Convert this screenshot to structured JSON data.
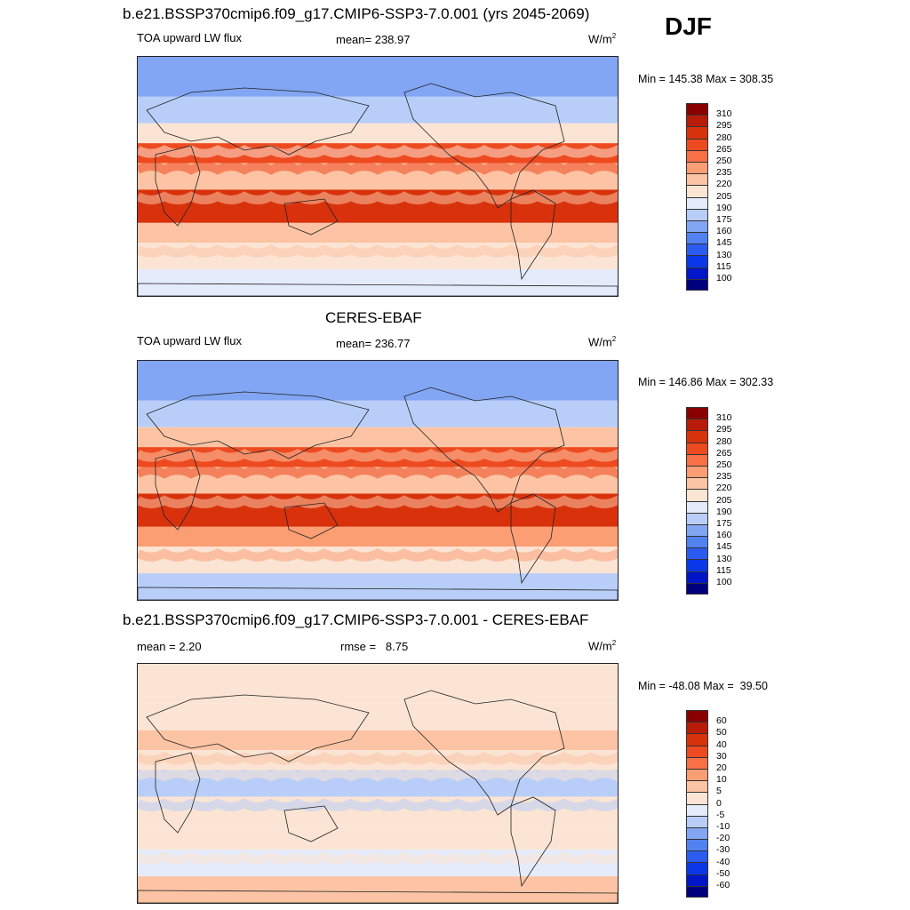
{
  "season": "DJF",
  "colors": {
    "flux": [
      "#00007f",
      "#0016c8",
      "#0a38e8",
      "#2a5cf0",
      "#5282f0",
      "#82a6f4",
      "#b8cef8",
      "#e4ecfb",
      "#fbe4d4",
      "#fcc4a4",
      "#fb9e74",
      "#f77046",
      "#ee4a20",
      "#d8320c",
      "#b81c08",
      "#8a0000"
    ],
    "diff": [
      "#00007f",
      "#0016c8",
      "#0a38e8",
      "#2a5cf0",
      "#5282f0",
      "#82a6f4",
      "#b8cef8",
      "#e4ecfb",
      "#fbe4d4",
      "#fcc4a4",
      "#fb9e74",
      "#f77046",
      "#ee4a20",
      "#d8320c",
      "#b81c08",
      "#8a0000"
    ]
  },
  "panels": [
    {
      "title": "b.e21.BSSP370cmip6.f09_g17.CMIP6-SSP3-7.0.001 (yrs 2045-2069)",
      "left_label": "TOA upward LW flux",
      "center_label": "mean= 238.97",
      "units": "W/m",
      "units_sup": "2",
      "minmax": "Min = 145.38 Max = 308.35",
      "levels": [
        "310",
        "295",
        "280",
        "265",
        "250",
        "235",
        "220",
        "205",
        "190",
        "175",
        "160",
        "145",
        "130",
        "115",
        "100"
      ]
    },
    {
      "title": "CERES-EBAF",
      "left_label": "TOA upward LW flux",
      "center_label": "mean= 236.77",
      "units": "W/m",
      "units_sup": "2",
      "minmax": "Min = 146.86 Max = 302.33",
      "levels": [
        "310",
        "295",
        "280",
        "265",
        "250",
        "235",
        "220",
        "205",
        "190",
        "175",
        "160",
        "145",
        "130",
        "115",
        "100"
      ]
    },
    {
      "title": "b.e21.BSSP370cmip6.f09_g17.CMIP6-SSP3-7.0.001 - CERES-EBAF",
      "left_label": "mean =   2.20",
      "center_label": "rmse =   8.75",
      "units": "W/m",
      "units_sup": "2",
      "minmax": "Min = -48.08 Max =  39.50",
      "levels": [
        "60",
        "50",
        "40",
        "30",
        "20",
        "10",
        "5",
        "0",
        "-5",
        "-10",
        "-20",
        "-30",
        "-40",
        "-50",
        "-60"
      ]
    }
  ],
  "chart_data": [
    {
      "type": "heatmap",
      "title": "b.e21.BSSP370cmip6.f09_g17.CMIP6-SSP3-7.0.001 (yrs 2045-2069)",
      "variable": "TOA upward LW flux",
      "units": "W/m2",
      "mean": 238.97,
      "min": 145.38,
      "max": 308.35,
      "contour_levels": [
        100,
        115,
        130,
        145,
        160,
        175,
        190,
        205,
        220,
        235,
        250,
        265,
        280,
        295,
        310
      ],
      "zonal_bands": [
        {
          "lat_range": [
            60,
            90
          ],
          "level_index": 5
        },
        {
          "lat_range": [
            40,
            60
          ],
          "level_index": 6
        },
        {
          "lat_range": [
            25,
            40
          ],
          "level_index": 8
        },
        {
          "lat_range": [
            10,
            25
          ],
          "level_index": 12
        },
        {
          "lat_range": [
            -10,
            10
          ],
          "level_index": 9
        },
        {
          "lat_range": [
            -35,
            -10
          ],
          "level_index": 13
        },
        {
          "lat_range": [
            -50,
            -35
          ],
          "level_index": 9
        },
        {
          "lat_range": [
            -70,
            -50
          ],
          "level_index": 8
        },
        {
          "lat_range": [
            -90,
            -70
          ],
          "level_index": 7
        }
      ]
    },
    {
      "type": "heatmap",
      "title": "CERES-EBAF",
      "variable": "TOA upward LW flux",
      "units": "W/m2",
      "mean": 236.77,
      "min": 146.86,
      "max": 302.33,
      "contour_levels": [
        100,
        115,
        130,
        145,
        160,
        175,
        190,
        205,
        220,
        235,
        250,
        265,
        280,
        295,
        310
      ],
      "zonal_bands": [
        {
          "lat_range": [
            60,
            90
          ],
          "level_index": 5
        },
        {
          "lat_range": [
            40,
            60
          ],
          "level_index": 6
        },
        {
          "lat_range": [
            25,
            40
          ],
          "level_index": 9
        },
        {
          "lat_range": [
            10,
            25
          ],
          "level_index": 12
        },
        {
          "lat_range": [
            -10,
            10
          ],
          "level_index": 9
        },
        {
          "lat_range": [
            -35,
            -10
          ],
          "level_index": 13
        },
        {
          "lat_range": [
            -50,
            -35
          ],
          "level_index": 10
        },
        {
          "lat_range": [
            -70,
            -50
          ],
          "level_index": 8
        },
        {
          "lat_range": [
            -90,
            -70
          ],
          "level_index": 6
        }
      ]
    },
    {
      "type": "heatmap",
      "title": "b.e21.BSSP370cmip6.f09_g17.CMIP6-SSP3-7.0.001 - CERES-EBAF",
      "variable": "difference",
      "units": "W/m2",
      "mean": 2.2,
      "rmse": 8.75,
      "min": -48.08,
      "max": 39.5,
      "contour_levels": [
        -60,
        -50,
        -40,
        -30,
        -20,
        -10,
        -5,
        0,
        5,
        10,
        20,
        30,
        40,
        50,
        60
      ],
      "zonal_bands": [
        {
          "lat_range": [
            60,
            90
          ],
          "level_index": 8
        },
        {
          "lat_range": [
            40,
            60
          ],
          "level_index": 8
        },
        {
          "lat_range": [
            25,
            40
          ],
          "level_index": 9
        },
        {
          "lat_range": [
            10,
            25
          ],
          "level_index": 8
        },
        {
          "lat_range": [
            -10,
            10
          ],
          "level_index": 6
        },
        {
          "lat_range": [
            -35,
            -10
          ],
          "level_index": 8
        },
        {
          "lat_range": [
            -50,
            -35
          ],
          "level_index": 8
        },
        {
          "lat_range": [
            -70,
            -50
          ],
          "level_index": 7
        },
        {
          "lat_range": [
            -90,
            -70
          ],
          "level_index": 9
        }
      ]
    }
  ]
}
